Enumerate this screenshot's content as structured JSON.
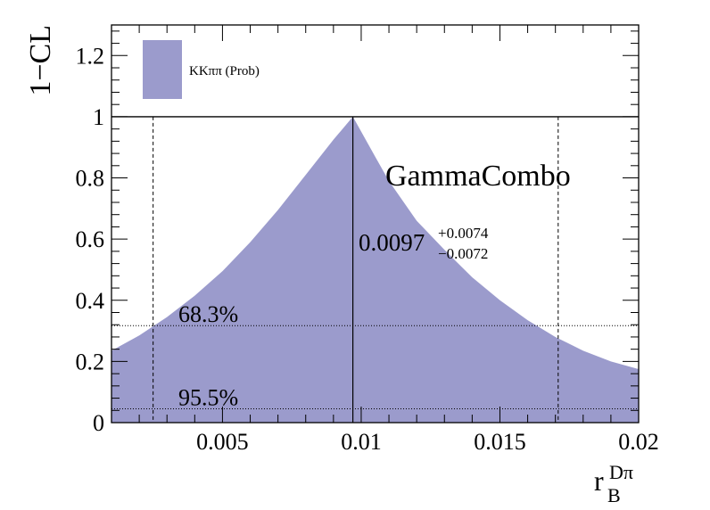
{
  "chart_data": {
    "type": "area",
    "ylabel": "1−CL",
    "xlabel_main": "r",
    "xlabel_sub": "B",
    "xlabel_sup": "Dπ",
    "xlim": [
      0.001,
      0.02
    ],
    "ylim": [
      0,
      1.3
    ],
    "x_ticks": [
      0.005,
      0.01,
      0.015,
      0.02
    ],
    "x_tick_labels": [
      "0.005",
      "0.01",
      "0.015",
      "0.02"
    ],
    "y_ticks": [
      0,
      0.2,
      0.4,
      0.6,
      0.8,
      1,
      1.2
    ],
    "y_tick_labels": [
      "0",
      "0.2",
      "0.4",
      "0.6",
      "0.8",
      "1",
      "1.2"
    ],
    "series": [
      {
        "name": "KKππ (Prob)",
        "color": "#9b9bcc",
        "x": [
          0.001,
          0.002,
          0.003,
          0.004,
          0.005,
          0.006,
          0.007,
          0.008,
          0.009,
          0.0097,
          0.0105,
          0.011,
          0.012,
          0.013,
          0.014,
          0.015,
          0.016,
          0.017,
          0.018,
          0.019,
          0.02
        ],
        "y": [
          0.235,
          0.285,
          0.345,
          0.415,
          0.495,
          0.59,
          0.695,
          0.81,
          0.925,
          1.0,
          0.87,
          0.79,
          0.66,
          0.565,
          0.475,
          0.4,
          0.335,
          0.28,
          0.235,
          0.2,
          0.175
        ]
      }
    ],
    "best_fit": {
      "x": 0.0097,
      "label": "0.0097",
      "plus": "+0.0074",
      "minus": "−0.0072"
    },
    "interval_68": [
      0.0025,
      0.0171
    ],
    "cl_lines": [
      {
        "y": 0.317,
        "label": "68.3%"
      },
      {
        "y": 0.045,
        "label": "95.5%"
      }
    ],
    "legend_threshold": 1.0,
    "legend_placement": "top",
    "annotation": "GammaCombo"
  }
}
